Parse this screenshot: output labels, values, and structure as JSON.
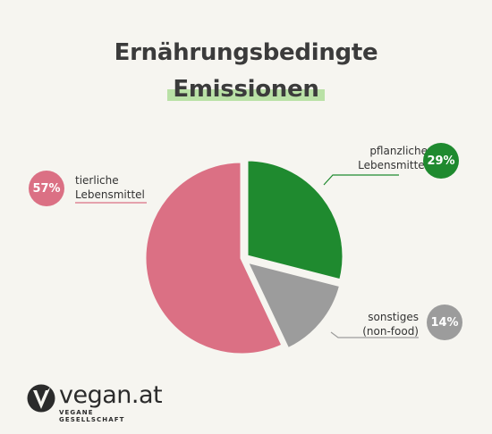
{
  "title": {
    "line1": "Ernährungsbedingte",
    "line2": "Emissionen"
  },
  "chart_data": {
    "type": "pie",
    "slices": [
      {
        "label_lines": [
          "pflanzliche",
          "Lebensmittel"
        ],
        "value": 29,
        "value_label": "29%",
        "color": "#1f8a2f"
      },
      {
        "label_lines": [
          "sonstiges",
          "(non-food)"
        ],
        "value": 14,
        "value_label": "14%",
        "color": "#9c9c9c"
      },
      {
        "label_lines": [
          "tierliche",
          "Lebensmittel"
        ],
        "value": 57,
        "value_label": "57%",
        "color": "#db7084"
      }
    ]
  },
  "logo": {
    "name": "vegan.at",
    "subtitle": "VEGANE GESELLSCHAFT",
    "icon": "vegan-v-leaf-icon"
  },
  "colors": {
    "background": "#f6f5f0",
    "highlight": "#b9e1a6",
    "text": "#3b3b3b"
  }
}
